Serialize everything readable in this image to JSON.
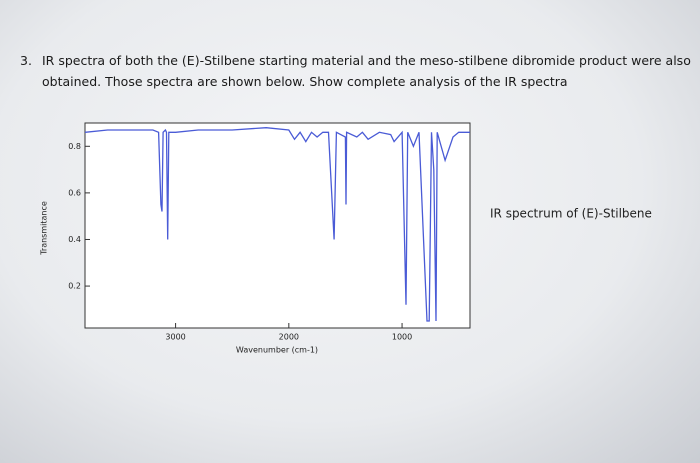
{
  "question": {
    "number": "3.",
    "lines": [
      "IR spectra of both the (E)-Stilbene starting material and the meso-stilbene dibromide product were also",
      "obtained. Those spectra are shown below.  Show complete analysis of the IR spectra"
    ]
  },
  "chart_data": {
    "type": "line",
    "side_label": "IR spectrum of (E)-Stilbene",
    "x_label": "Wavenumber (cm-1)",
    "y_label": "Transmitance",
    "xlim": [
      3800,
      400
    ],
    "xticks": [
      3000,
      2000,
      1000
    ],
    "ylim": [
      0.02,
      0.9
    ],
    "yticks": [
      0.2,
      0.4,
      0.6,
      0.8
    ],
    "x": [
      3800,
      3600,
      3400,
      3200,
      3150,
      3130,
      3120,
      3110,
      3090,
      3080,
      3070,
      3060,
      3000,
      2800,
      2500,
      2200,
      2000,
      1950,
      1900,
      1850,
      1800,
      1750,
      1700,
      1650,
      1600,
      1580,
      1500,
      1495,
      1490,
      1400,
      1350,
      1300,
      1200,
      1100,
      1070,
      1000,
      965,
      950,
      900,
      850,
      780,
      760,
      740,
      720,
      700,
      690,
      620,
      550,
      500,
      400
    ],
    "series": [
      {
        "color": "#4a5bd6",
        "values": [
          0.86,
          0.87,
          0.87,
          0.87,
          0.86,
          0.55,
          0.52,
          0.86,
          0.87,
          0.86,
          0.4,
          0.86,
          0.86,
          0.87,
          0.87,
          0.88,
          0.87,
          0.83,
          0.86,
          0.82,
          0.86,
          0.84,
          0.86,
          0.86,
          0.4,
          0.86,
          0.84,
          0.55,
          0.86,
          0.84,
          0.86,
          0.83,
          0.86,
          0.85,
          0.82,
          0.86,
          0.12,
          0.86,
          0.8,
          0.86,
          0.05,
          0.05,
          0.86,
          0.7,
          0.05,
          0.86,
          0.74,
          0.84,
          0.86,
          0.86
        ]
      }
    ]
  }
}
